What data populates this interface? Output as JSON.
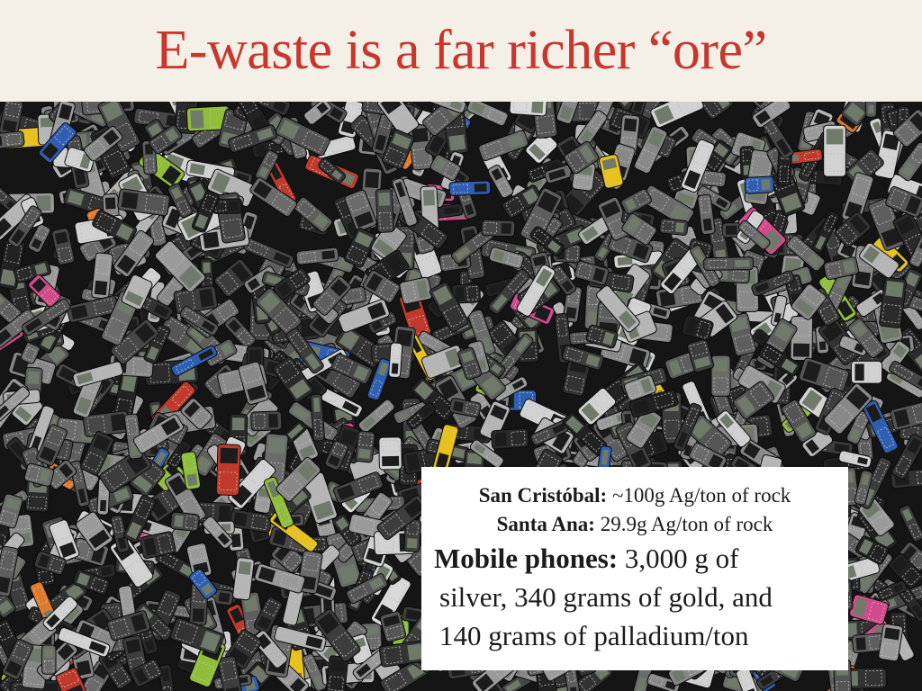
{
  "slide": {
    "title": "E-waste is a far richer “ore”"
  },
  "photo": {
    "subject": "pile-of-discarded-mobile-phones",
    "background_color": "#1a1a1a"
  },
  "callout": {
    "line1_label": "San Cristóbal:",
    "line1_value": " ~100g Ag/ton of rock",
    "line2_label": "Santa Ana:",
    "line2_value": " 29.9g Ag/ton of rock",
    "line3_label": "Mobile phones:",
    "line3_value": " 3,000 g of",
    "line4": "silver, 340 grams of gold, and",
    "line5": "140 grams of palladium/ton"
  },
  "colors": {
    "title": "#c8372b",
    "band": "#f4f0e8",
    "callout_bg": "#ffffff"
  }
}
